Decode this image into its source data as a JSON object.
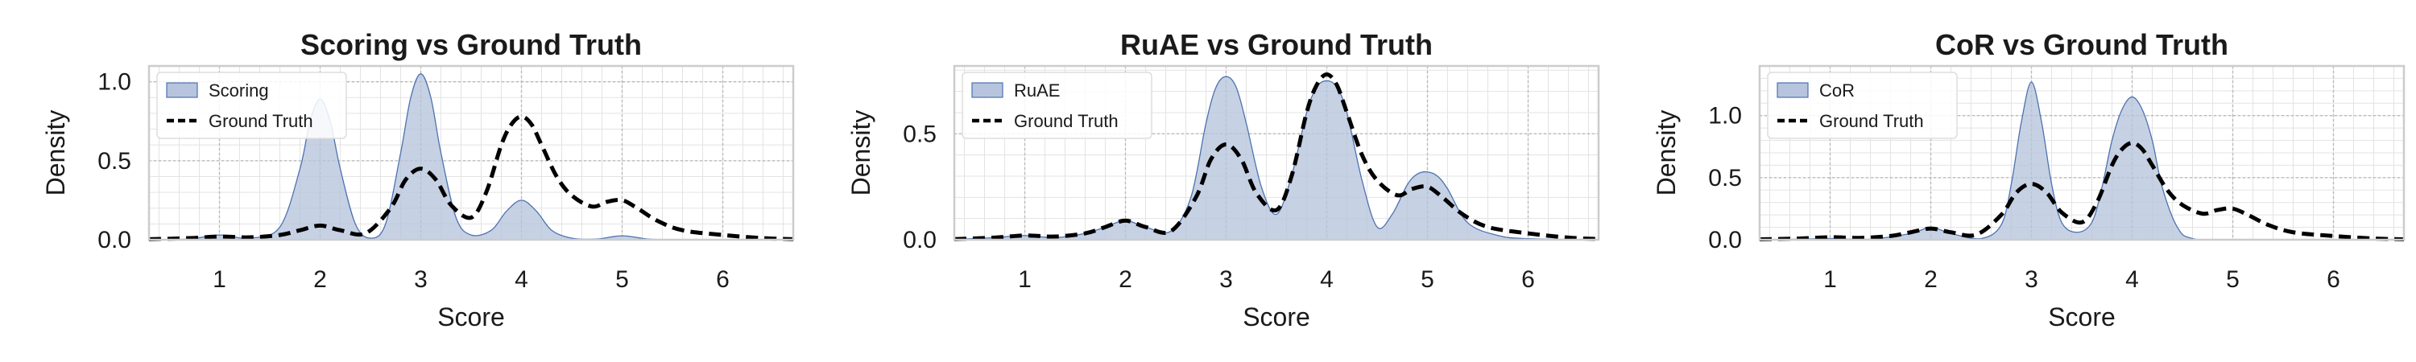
{
  "colors": {
    "fill": "#b7c4dd",
    "fill_stroke": "#4c72b0",
    "ground_truth": "#000000",
    "grid_major": "#b9b9b9",
    "grid_minor": "#e3e3e3",
    "frame": "#cccccc"
  },
  "chart_data": [
    {
      "type": "area",
      "title": "Scoring vs Ground Truth",
      "xlabel": "Score",
      "ylabel": "Density",
      "xlim": [
        0.3,
        6.7
      ],
      "ylim": [
        0,
        1.1
      ],
      "xticks": [
        1,
        2,
        3,
        4,
        5,
        6
      ],
      "yticks": [
        0.0,
        0.5,
        1.0
      ],
      "ytick_labels": [
        "0.0",
        "0.5",
        "1.0"
      ],
      "legend_position": "top-left",
      "grid": true,
      "series": [
        {
          "name": "Scoring",
          "style": "filled-area",
          "x": [
            0.3,
            0.7,
            1.0,
            1.3,
            1.6,
            1.8,
            1.9,
            2.0,
            2.1,
            2.2,
            2.35,
            2.5,
            2.65,
            2.8,
            2.9,
            3.0,
            3.1,
            3.2,
            3.35,
            3.5,
            3.7,
            3.85,
            4.0,
            4.15,
            4.3,
            4.5,
            4.75,
            5.0,
            5.25,
            5.5,
            6.0,
            6.7
          ],
          "y": [
            0.0,
            0.005,
            0.03,
            0.01,
            0.08,
            0.45,
            0.75,
            0.89,
            0.75,
            0.45,
            0.1,
            0.01,
            0.1,
            0.55,
            0.9,
            1.05,
            0.9,
            0.55,
            0.14,
            0.03,
            0.06,
            0.18,
            0.25,
            0.18,
            0.06,
            0.01,
            0.005,
            0.025,
            0.005,
            0.0,
            0.0,
            0.0
          ]
        },
        {
          "name": "Ground Truth",
          "style": "dashed-line",
          "x": [
            0.3,
            0.7,
            1.0,
            1.3,
            1.6,
            1.8,
            2.0,
            2.2,
            2.45,
            2.7,
            2.85,
            3.0,
            3.15,
            3.3,
            3.5,
            3.65,
            3.8,
            3.9,
            4.0,
            4.1,
            4.2,
            4.35,
            4.5,
            4.7,
            4.85,
            5.0,
            5.15,
            5.35,
            5.6,
            6.0,
            6.4,
            6.7
          ],
          "y": [
            0.003,
            0.01,
            0.02,
            0.015,
            0.03,
            0.06,
            0.09,
            0.06,
            0.04,
            0.2,
            0.38,
            0.45,
            0.38,
            0.22,
            0.14,
            0.3,
            0.6,
            0.73,
            0.78,
            0.73,
            0.6,
            0.4,
            0.28,
            0.21,
            0.24,
            0.25,
            0.2,
            0.12,
            0.06,
            0.03,
            0.01,
            0.003
          ]
        }
      ]
    },
    {
      "type": "area",
      "title": "RuAE vs Ground Truth",
      "xlabel": "Score",
      "ylabel": "Density",
      "xlim": [
        0.3,
        6.7
      ],
      "ylim": [
        0,
        0.82
      ],
      "xticks": [
        1,
        2,
        3,
        4,
        5,
        6
      ],
      "yticks": [
        0.0,
        0.5
      ],
      "ytick_labels": [
        "0.0",
        "0.5"
      ],
      "legend_position": "top-left",
      "grid": true,
      "series": [
        {
          "name": "RuAE",
          "style": "filled-area",
          "x": [
            0.3,
            0.7,
            1.0,
            1.3,
            1.6,
            1.8,
            2.0,
            2.2,
            2.45,
            2.65,
            2.8,
            2.9,
            3.0,
            3.1,
            3.2,
            3.35,
            3.5,
            3.65,
            3.8,
            3.9,
            4.0,
            4.1,
            4.2,
            4.35,
            4.5,
            4.65,
            4.8,
            4.9,
            5.0,
            5.1,
            5.2,
            5.4,
            5.7,
            6.0,
            6.7
          ],
          "y": [
            0.002,
            0.01,
            0.02,
            0.01,
            0.03,
            0.06,
            0.09,
            0.06,
            0.04,
            0.2,
            0.55,
            0.72,
            0.77,
            0.72,
            0.55,
            0.25,
            0.12,
            0.3,
            0.6,
            0.72,
            0.75,
            0.72,
            0.6,
            0.28,
            0.06,
            0.12,
            0.26,
            0.31,
            0.32,
            0.3,
            0.24,
            0.08,
            0.02,
            0.005,
            0.0
          ]
        },
        {
          "name": "Ground Truth",
          "style": "dashed-line",
          "x": [
            0.3,
            0.7,
            1.0,
            1.3,
            1.6,
            1.8,
            2.0,
            2.2,
            2.45,
            2.7,
            2.85,
            3.0,
            3.15,
            3.3,
            3.5,
            3.65,
            3.8,
            3.9,
            4.0,
            4.1,
            4.2,
            4.35,
            4.5,
            4.7,
            4.85,
            5.0,
            5.15,
            5.35,
            5.6,
            6.0,
            6.4,
            6.7
          ],
          "y": [
            0.003,
            0.01,
            0.02,
            0.015,
            0.03,
            0.06,
            0.09,
            0.06,
            0.04,
            0.2,
            0.38,
            0.45,
            0.38,
            0.22,
            0.14,
            0.3,
            0.6,
            0.73,
            0.78,
            0.73,
            0.6,
            0.4,
            0.28,
            0.21,
            0.24,
            0.25,
            0.2,
            0.12,
            0.06,
            0.03,
            0.01,
            0.003
          ]
        }
      ]
    },
    {
      "type": "area",
      "title": "CoR vs Ground Truth",
      "xlabel": "Score",
      "ylabel": "Density",
      "xlim": [
        0.3,
        6.7
      ],
      "ylim": [
        0,
        1.4
      ],
      "xticks": [
        1,
        2,
        3,
        4,
        5,
        6
      ],
      "yticks": [
        0.0,
        0.5,
        1.0
      ],
      "ytick_labels": [
        "0.0",
        "0.5",
        "1.0"
      ],
      "legend_position": "top-left",
      "grid": true,
      "series": [
        {
          "name": "CoR",
          "style": "filled-area",
          "x": [
            0.3,
            0.7,
            1.0,
            1.4,
            1.8,
            2.0,
            2.2,
            2.5,
            2.7,
            2.8,
            2.9,
            3.0,
            3.1,
            3.2,
            3.3,
            3.45,
            3.6,
            3.7,
            3.8,
            3.9,
            4.0,
            4.1,
            4.2,
            4.3,
            4.45,
            4.6,
            5.0,
            6.7
          ],
          "y": [
            0.0,
            0.005,
            0.01,
            0.005,
            0.05,
            0.1,
            0.05,
            0.01,
            0.12,
            0.45,
            0.95,
            1.27,
            0.95,
            0.45,
            0.14,
            0.06,
            0.14,
            0.42,
            0.8,
            1.05,
            1.15,
            1.05,
            0.8,
            0.42,
            0.1,
            0.01,
            0.0,
            0.0
          ]
        },
        {
          "name": "Ground Truth",
          "style": "dashed-line",
          "x": [
            0.3,
            0.7,
            1.0,
            1.3,
            1.6,
            1.8,
            2.0,
            2.2,
            2.45,
            2.7,
            2.85,
            3.0,
            3.15,
            3.3,
            3.5,
            3.65,
            3.8,
            3.9,
            4.0,
            4.1,
            4.2,
            4.35,
            4.5,
            4.7,
            4.85,
            5.0,
            5.15,
            5.35,
            5.6,
            6.0,
            6.4,
            6.7
          ],
          "y": [
            0.003,
            0.01,
            0.02,
            0.015,
            0.03,
            0.06,
            0.09,
            0.06,
            0.04,
            0.2,
            0.38,
            0.45,
            0.38,
            0.22,
            0.14,
            0.3,
            0.6,
            0.73,
            0.78,
            0.73,
            0.6,
            0.4,
            0.28,
            0.21,
            0.24,
            0.25,
            0.2,
            0.12,
            0.06,
            0.03,
            0.01,
            0.003
          ]
        }
      ]
    }
  ]
}
